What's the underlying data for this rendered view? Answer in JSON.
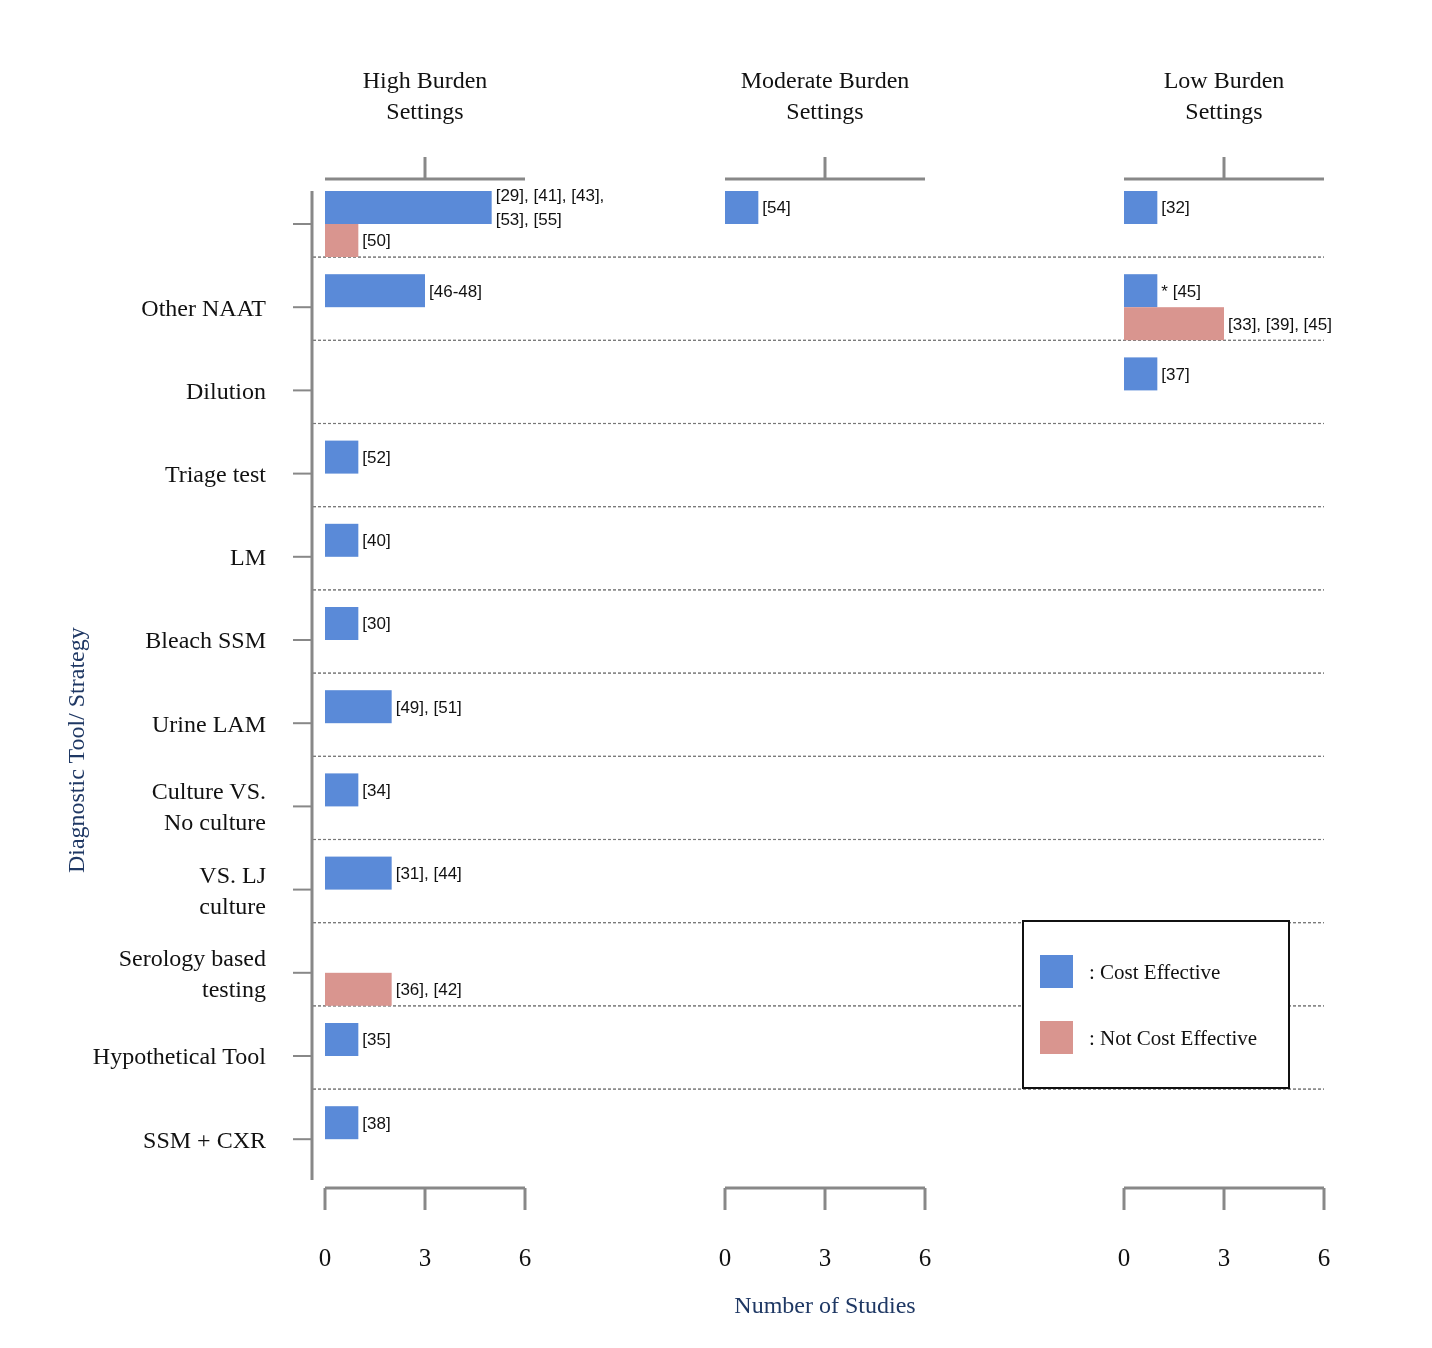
{
  "chart_data": [
    {
      "type": "bar",
      "orientation": "horizontal",
      "title": "High Burden\nSettings",
      "ylabel": "Diagnostic Tool/ Strategy",
      "categories": [
        null,
        "Other NAAT",
        "Dilution",
        "Triage test",
        "LM",
        "Bleach SSM",
        "Urine LAM",
        "Culture VS.\nNo culture",
        "VS. LJ\nculture",
        "Serology based\ntesting",
        "Hypothetical Tool",
        "SSM + CXR"
      ],
      "series": [
        {
          "color": "#5a8ad8",
          "values": [
            5,
            3,
            null,
            1,
            1,
            1,
            2,
            1,
            2,
            null,
            1,
            1
          ]
        },
        {
          "color": "#d9958f",
          "values": [
            1,
            null,
            null,
            null,
            null,
            null,
            null,
            null,
            null,
            2,
            null,
            null
          ]
        }
      ],
      "annotations": [
        {
          "text": "[29], [41], [43], [53], [55]",
          "x": 5
        },
        {
          "text": "[50]",
          "x": 1
        },
        {
          "text": "[46-48]",
          "x": 3,
          "y": "Other NAAT"
        },
        {
          "text": "[52]",
          "x": 1,
          "y": "Triage test"
        },
        {
          "text": "[40]",
          "x": 1,
          "y": "LM"
        },
        {
          "text": "[30]",
          "x": 1,
          "y": "Bleach SSM"
        },
        {
          "text": "[49], [51]",
          "x": 2,
          "y": "Urine LAM"
        },
        {
          "text": "[34]",
          "x": 1,
          "y": "Culture VS.\nNo culture"
        },
        {
          "text": "[31], [44]",
          "x": 2,
          "y": "VS. LJ\nculture"
        },
        {
          "text": "[36], [42]",
          "x": 2,
          "y": "Serology based\ntesting"
        },
        {
          "text": "[35]",
          "x": 1,
          "y": "Hypothetical Tool"
        },
        {
          "text": "[38]",
          "x": 1,
          "y": "SSM + CXR"
        }
      ],
      "xlim": [
        0,
        6
      ],
      "xticks": [
        0,
        3,
        6
      ],
      "grid": "y",
      "legend": false
    },
    {
      "type": "bar",
      "orientation": "horizontal",
      "title": "Moderate Burden\nSettings",
      "xlabel": "Number of Studies",
      "series": [
        {
          "color": "#5a8ad8",
          "values": [
            1,
            null,
            null,
            null,
            null,
            null,
            null,
            null,
            null,
            null,
            null,
            null
          ]
        }
      ],
      "annotations": [
        {
          "text": "[54]",
          "x": 1
        }
      ],
      "xlim": [
        0,
        6
      ],
      "xticks": [
        0,
        3,
        6
      ],
      "tick_labels": "x",
      "legend": false
    },
    {
      "type": "bar",
      "orientation": "horizontal",
      "title": "Low Burden\nSettings",
      "categories": [
        null,
        "Other NAAT",
        "Dilution",
        "Triage test",
        "LM",
        "Bleach SSM",
        "Urine LAM",
        "Culture VS.\nNo culture",
        "VS. LJ\nculture",
        "Serology based\ntesting",
        "Hypothetical Tool",
        "SSM + CXR"
      ],
      "series": [
        {
          "name": ": Cost Effective",
          "color": "#5a8ad8",
          "values": [
            1,
            1,
            1,
            null,
            null,
            null,
            null,
            null,
            null,
            null,
            null,
            null
          ]
        },
        {
          "name": ": Not Cost Effective",
          "color": "#d9958f",
          "values": [
            null,
            3,
            null,
            null,
            null,
            null,
            null,
            null,
            null,
            null,
            null,
            null
          ]
        }
      ],
      "annotations": [
        {
          "text": "[32]",
          "x": 1
        },
        {
          "text": "* [45]",
          "x": 1,
          "y": "Other NAAT"
        },
        {
          "text": "[33], [39], [45]",
          "x": 3,
          "y": "Other NAAT"
        },
        {
          "text": "[37]",
          "x": 1,
          "y": "Dilution"
        }
      ],
      "xlim": [
        0,
        6
      ],
      "xticks": [
        0,
        3,
        6
      ],
      "tick_labels": "x",
      "legend": "bottom left"
    }
  ]
}
